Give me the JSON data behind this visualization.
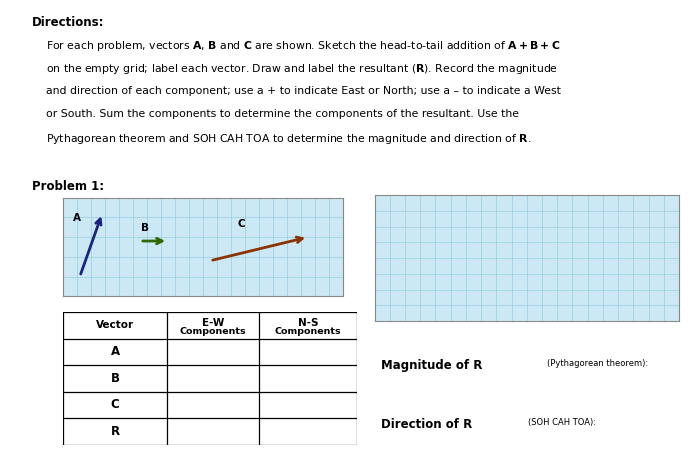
{
  "bg_color": "#ffffff",
  "grid_bg": "#cce8f4",
  "grid_line_color": "#96cfe0",
  "vector_A_color": "#1a237e",
  "vector_B_color": "#2d6a00",
  "vector_C_color": "#8b3300",
  "table_rows": [
    "A",
    "B",
    "C",
    "R"
  ],
  "problem_label": "Problem 1:"
}
